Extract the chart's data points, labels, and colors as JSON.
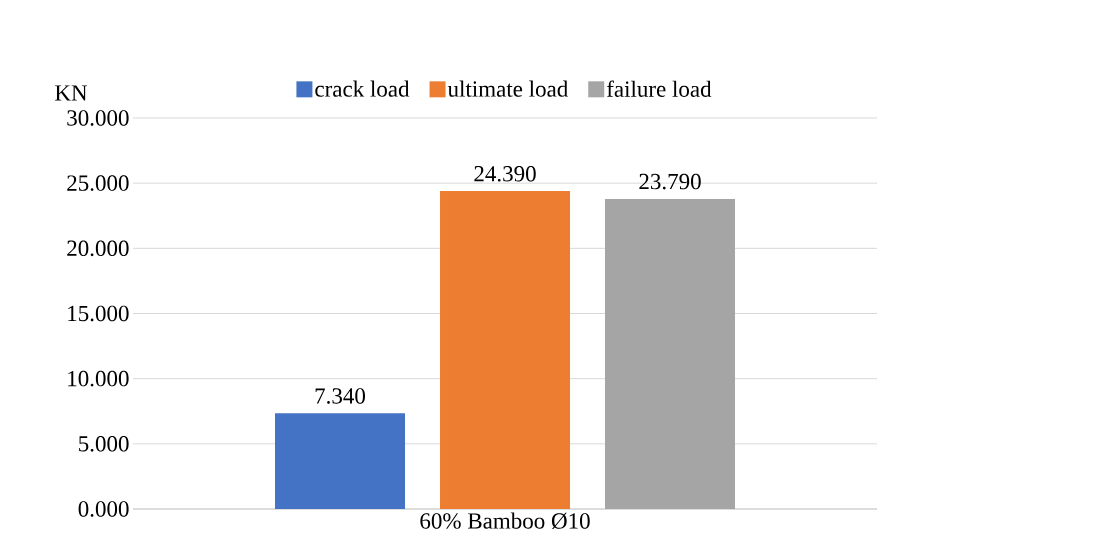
{
  "chart_data": {
    "type": "bar",
    "ylabel": "KN",
    "categories": [
      "60% Bamboo Ø10"
    ],
    "series": [
      {
        "name": "crack load",
        "color": "#4472c4",
        "values": [
          7.34
        ],
        "value_labels": [
          "7.340"
        ]
      },
      {
        "name": "ultimate load",
        "color": "#ed7d31",
        "values": [
          24.39
        ],
        "value_labels": [
          "24.390"
        ]
      },
      {
        "name": "failure load",
        "color": "#a5a5a5",
        "values": [
          23.79
        ],
        "value_labels": [
          "23.790"
        ]
      }
    ],
    "ylim": [
      0,
      30
    ],
    "yticks": [
      {
        "value": 0,
        "label": "0.000"
      },
      {
        "value": 5,
        "label": "5.000"
      },
      {
        "value": 10,
        "label": "10.000"
      },
      {
        "value": 15,
        "label": "15.000"
      },
      {
        "value": 20,
        "label": "20.000"
      },
      {
        "value": 25,
        "label": "25.000"
      },
      {
        "value": 30,
        "label": "30.000"
      }
    ],
    "grid": "y",
    "legend": "top"
  }
}
